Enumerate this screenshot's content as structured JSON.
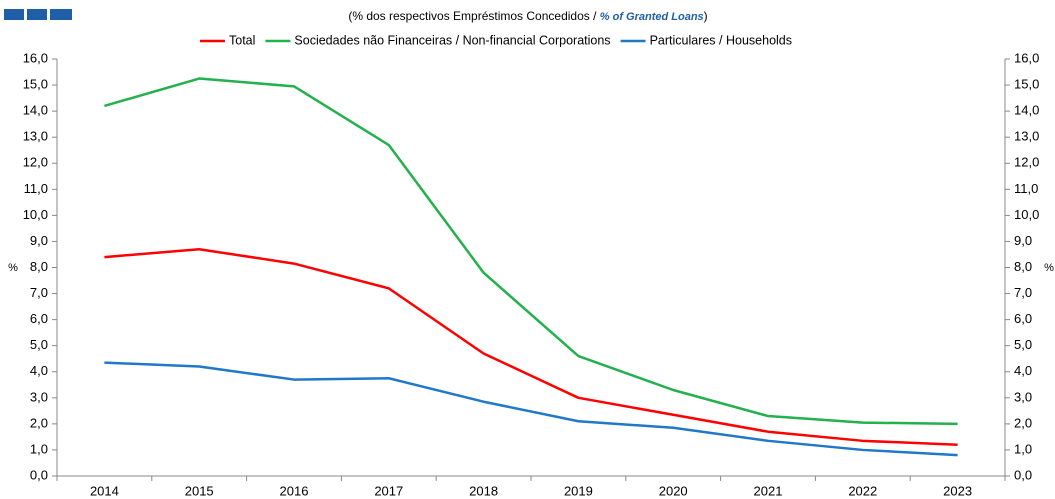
{
  "chart_data": {
    "type": "line",
    "subtitle": [
      "(% dos respectivos Empréstimos  Concedidos / ",
      "% of Granted Loans",
      ")"
    ],
    "ylabel": "%",
    "y2label": "%",
    "categories": [
      "2014",
      "2015",
      "2016",
      "2017",
      "2018",
      "2019",
      "2020",
      "2021",
      "2022",
      "2023"
    ],
    "series": [
      {
        "name": "Total",
        "color": "#ff0000",
        "values": [
          8.4,
          8.7,
          8.15,
          7.2,
          4.7,
          3.0,
          2.35,
          1.7,
          1.35,
          1.2
        ]
      },
      {
        "name": "Sociedades não Financeiras / Non-financial Corporations",
        "color": "#22b14c",
        "values": [
          14.2,
          15.25,
          14.95,
          12.7,
          7.8,
          4.6,
          3.3,
          2.3,
          2.05,
          2.0
        ]
      },
      {
        "name": "Particulares / Households",
        "color": "#1f78c8",
        "values": [
          4.35,
          4.2,
          3.7,
          3.75,
          2.85,
          2.1,
          1.85,
          1.35,
          1.0,
          0.8
        ]
      }
    ],
    "ylim": [
      0,
      16
    ],
    "yticks": [
      {
        "value": 0,
        "label": "0,0"
      },
      {
        "value": 1,
        "label": "1,0"
      },
      {
        "value": 2,
        "label": "2,0"
      },
      {
        "value": 3,
        "label": "3,0"
      },
      {
        "value": 4,
        "label": "4,0"
      },
      {
        "value": 5,
        "label": "5,0"
      },
      {
        "value": 6,
        "label": "6,0"
      },
      {
        "value": 7,
        "label": "7,0"
      },
      {
        "value": 8,
        "label": "8,0"
      },
      {
        "value": 9,
        "label": "9,0"
      },
      {
        "value": 10,
        "label": "10,0"
      },
      {
        "value": 11,
        "label": "11,0"
      },
      {
        "value": 12,
        "label": "12,0"
      },
      {
        "value": 13,
        "label": "13,0"
      },
      {
        "value": 14,
        "label": "14,0"
      },
      {
        "value": 15,
        "label": "15,0"
      },
      {
        "value": 16,
        "label": "16,0"
      }
    ],
    "y2lim": [
      0,
      16
    ],
    "y2ticks": [
      {
        "value": 0,
        "label": "0,0"
      },
      {
        "value": 1,
        "label": "1,0"
      },
      {
        "value": 2,
        "label": "2,0"
      },
      {
        "value": 3,
        "label": "3,0"
      },
      {
        "value": 4,
        "label": "4,0"
      },
      {
        "value": 5,
        "label": "5,0"
      },
      {
        "value": 6,
        "label": "6,0"
      },
      {
        "value": 7,
        "label": "7,0"
      },
      {
        "value": 8,
        "label": "8,0"
      },
      {
        "value": 9,
        "label": "9,0"
      },
      {
        "value": 10,
        "label": "10,0"
      },
      {
        "value": 11,
        "label": "11,0"
      },
      {
        "value": 12,
        "label": "12,0"
      },
      {
        "value": 13,
        "label": "13,0"
      },
      {
        "value": 14,
        "label": "14,0"
      },
      {
        "value": 15,
        "label": "15,0"
      },
      {
        "value": 16,
        "label": "16,0"
      }
    ],
    "legend": "top"
  }
}
